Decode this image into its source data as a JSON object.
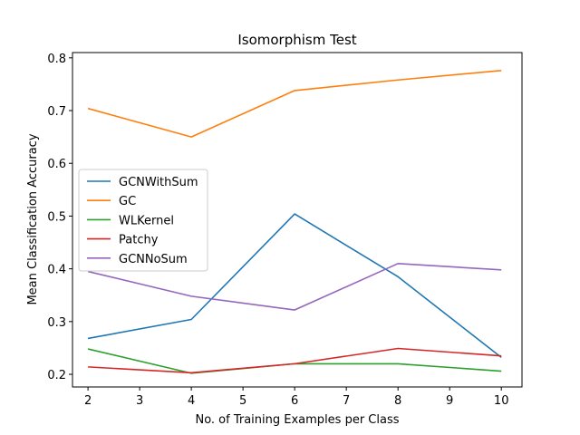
{
  "chart_data": {
    "type": "line",
    "title": "Isomorphism Test",
    "xlabel": "No. of Training Examples per Class",
    "ylabel": "Mean Classification Accuracy",
    "xlim": [
      1.7,
      10.4
    ],
    "ylim": [
      0.176,
      0.81
    ],
    "xticks": [
      2,
      3,
      4,
      5,
      6,
      7,
      8,
      9,
      10
    ],
    "yticks": [
      0.2,
      0.3,
      0.4,
      0.5,
      0.6,
      0.7,
      0.8
    ],
    "ytick_labels": [
      "0.2",
      "0.3",
      "0.4",
      "0.5",
      "0.6",
      "0.7",
      "0.8"
    ],
    "x": [
      2,
      4,
      6,
      8,
      10
    ],
    "grid": false,
    "legend_position": "center-left",
    "series": [
      {
        "name": "GCNWithSum",
        "color": "#1f77b4",
        "values": [
          0.268,
          0.304,
          0.504,
          0.385,
          0.232
        ]
      },
      {
        "name": "GC",
        "color": "#ff7f0e",
        "values": [
          0.704,
          0.65,
          0.738,
          0.758,
          0.776
        ]
      },
      {
        "name": "WLKernel",
        "color": "#2ca02c",
        "values": [
          0.248,
          0.202,
          0.22,
          0.22,
          0.206
        ]
      },
      {
        "name": "Patchy",
        "color": "#d62728",
        "values": [
          0.214,
          0.203,
          0.22,
          0.249,
          0.235
        ]
      },
      {
        "name": "GCNNoSum",
        "color": "#9467bd",
        "values": [
          0.395,
          0.348,
          0.322,
          0.41,
          0.398
        ]
      }
    ]
  }
}
